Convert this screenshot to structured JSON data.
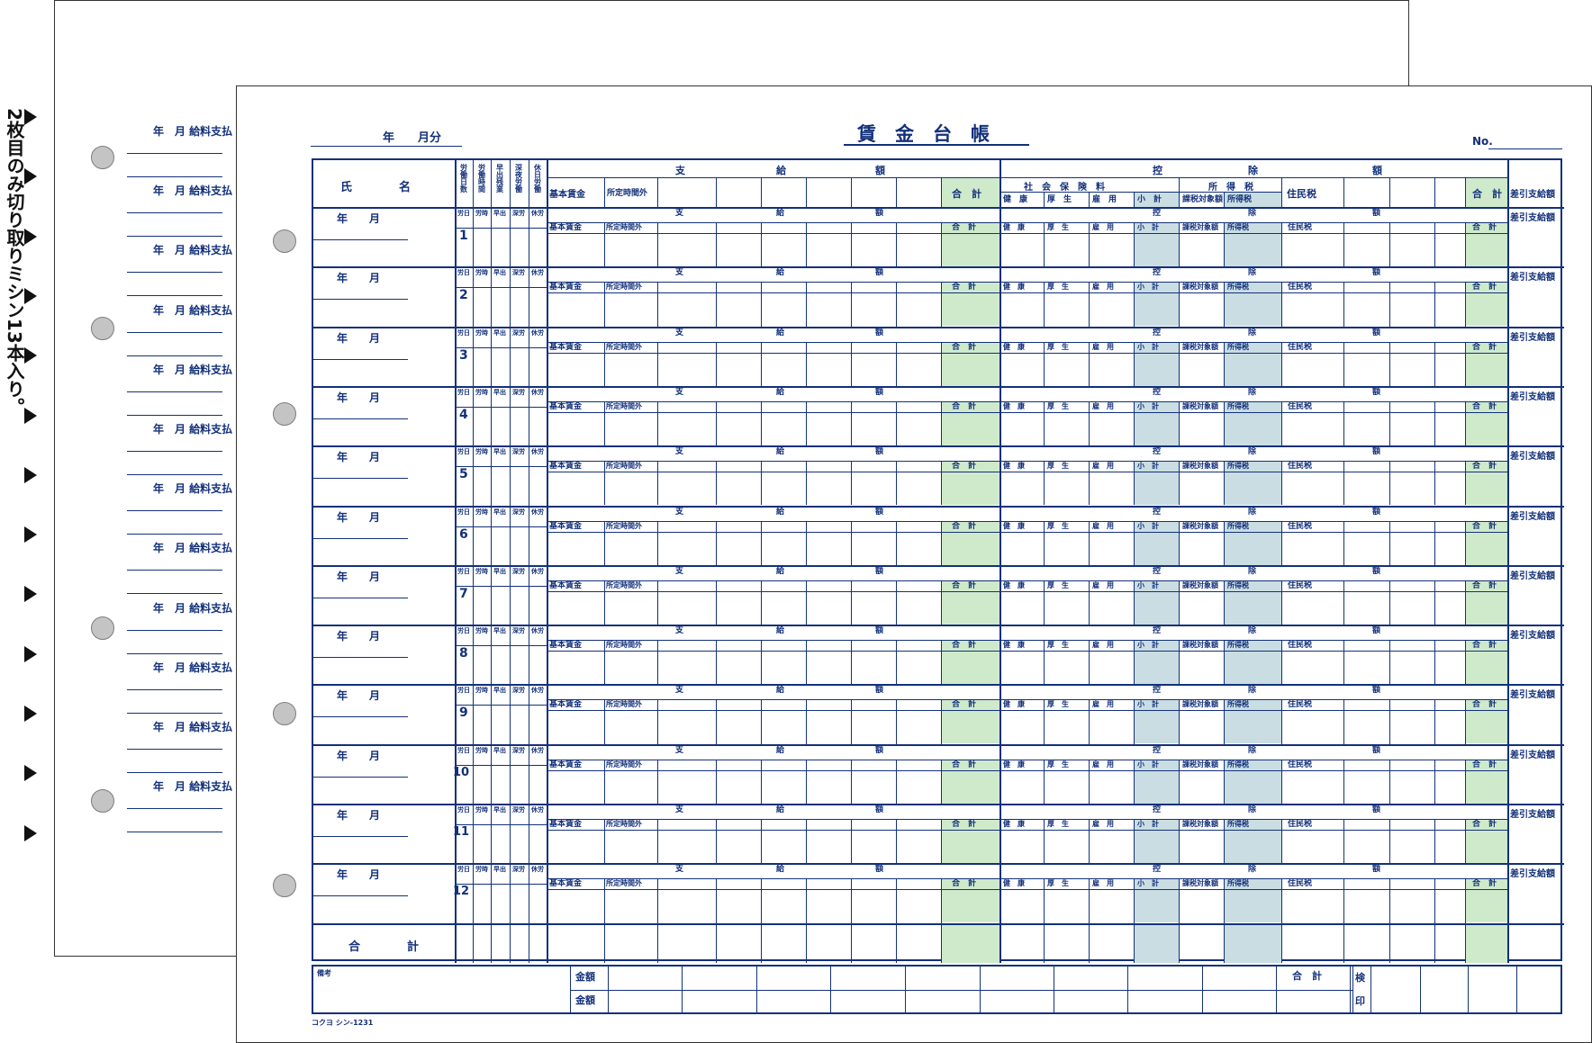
{
  "side_note": "2枚目のみ切り取りミシン13本入り。",
  "back_slip": {
    "label": "年　月 給料支払"
  },
  "header": {
    "period": "年　　月分",
    "title": "賃　金　台　帳",
    "number_label": "No."
  },
  "table_header": {
    "name": "氏　　　　名",
    "work_cols": [
      "労働日数",
      "労働時間",
      "早出残業",
      "深夜労働",
      "休日労働"
    ],
    "work_cols_small": [
      "労日",
      "労時",
      "早出",
      "深労",
      "休労"
    ],
    "pay_section": [
      "支",
      "給",
      "額"
    ],
    "pay_items": [
      "基本賃金",
      "所定時間外"
    ],
    "pay_total": "合　計",
    "ded_section": [
      "控",
      "除",
      "額"
    ],
    "social_insurance": "社　会　保　険　料",
    "income_tax": "所　得　税",
    "ded_items": [
      "健　康",
      "厚　生",
      "雇　用",
      "小　計",
      "課税対象額",
      "所得税"
    ],
    "resident_tax": "住民税",
    "ded_total": "合　計",
    "net_pay": "差引支給額"
  },
  "rows": {
    "year_month": "年　　月",
    "numbers": [
      "1",
      "2",
      "3",
      "4",
      "5",
      "6",
      "7",
      "8",
      "9",
      "10",
      "11",
      "12"
    ]
  },
  "grand_total_label": "合　　　　計",
  "footer": {
    "remarks": "備考",
    "amount_label_1": "金額",
    "amount_label_2": "金額",
    "total_label": "合　計",
    "inspection": [
      "検",
      "印"
    ]
  },
  "product_code": "コクヨ シン-1231",
  "colors": {
    "ink": "#13307a",
    "green": "#cfeacb",
    "blue": "#c9dde3"
  }
}
